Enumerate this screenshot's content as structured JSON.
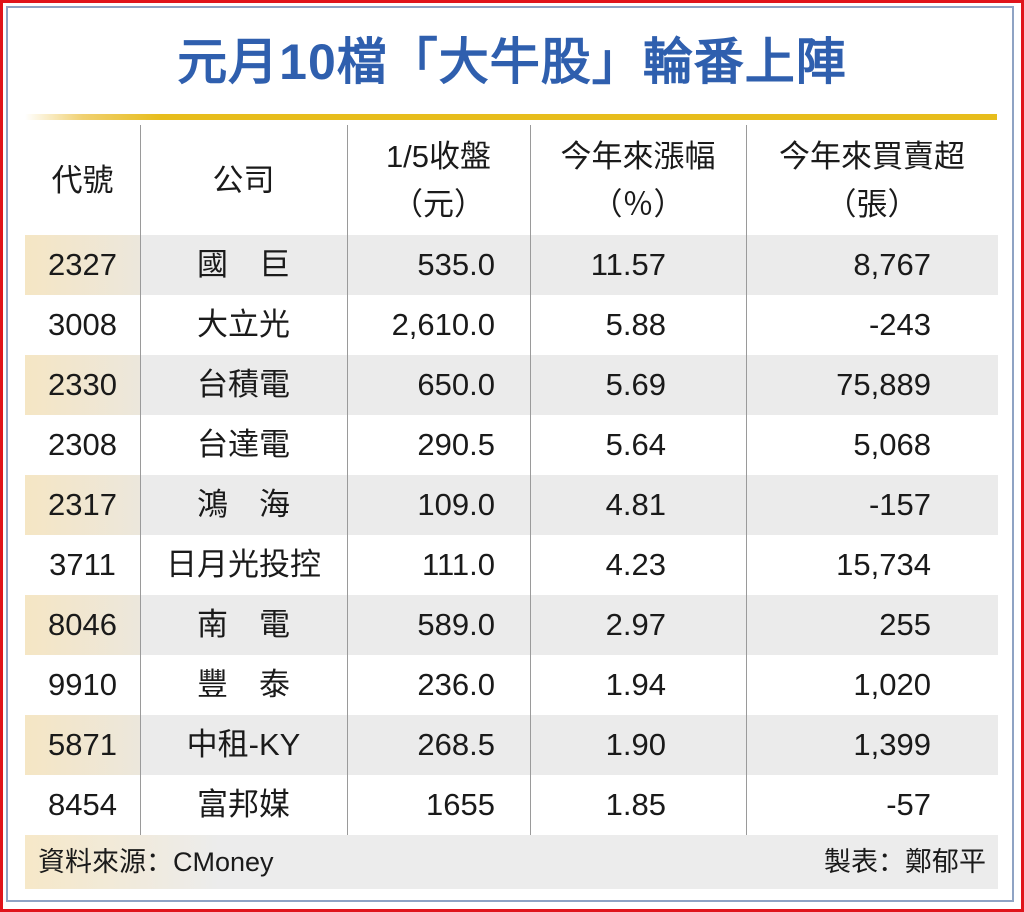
{
  "title": "元月10檔「大牛股」輪番上陣",
  "colors": {
    "title": "#2f5fae",
    "frame": "#e0141b",
    "gold_rule": "#e7bd1c",
    "row_shade": "#ebebeb"
  },
  "chart_data": {
    "type": "table",
    "title": "元月10檔「大牛股」輪番上陣",
    "columns": [
      {
        "label": "代號",
        "sub": ""
      },
      {
        "label": "公司",
        "sub": ""
      },
      {
        "label": "1/5收盤",
        "sub": "（元）"
      },
      {
        "label": "今年來漲幅",
        "sub": "（％）"
      },
      {
        "label": "今年來買賣超",
        "sub": "（張）"
      }
    ],
    "rows": [
      [
        "2327",
        "國　巨",
        "535.0",
        "11.57",
        "8,767"
      ],
      [
        "3008",
        "大立光",
        "2,610.0",
        "5.88",
        "-243"
      ],
      [
        "2330",
        "台積電",
        "650.0",
        "5.69",
        "75,889"
      ],
      [
        "2308",
        "台達電",
        "290.5",
        "5.64",
        "5,068"
      ],
      [
        "2317",
        "鴻　海",
        "109.0",
        "4.81",
        "-157"
      ],
      [
        "3711",
        "日月光投控",
        "111.0",
        "4.23",
        "15,734"
      ],
      [
        "8046",
        "南　電",
        "589.0",
        "2.97",
        "255"
      ],
      [
        "9910",
        "豐　泰",
        "236.0",
        "1.94",
        "1,020"
      ],
      [
        "5871",
        "中租-KY",
        "268.5",
        "1.90",
        "1,399"
      ],
      [
        "8454",
        "富邦媒",
        "1655",
        "1.85",
        "-57"
      ]
    ]
  },
  "footer": {
    "source": "資料來源：CMoney",
    "credit": "製表：鄭郁平"
  }
}
